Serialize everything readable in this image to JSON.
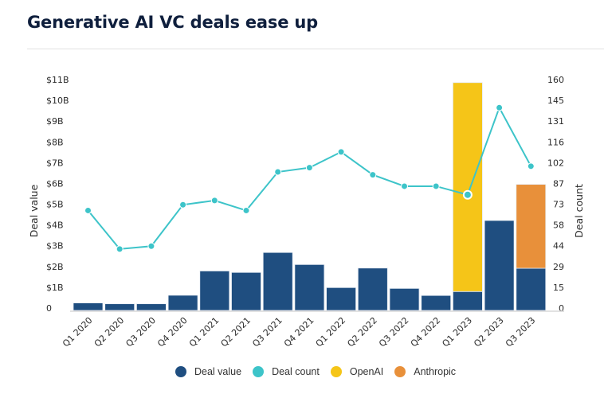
{
  "title": "Generative AI VC deals ease up",
  "chart_data": {
    "type": "bar",
    "title": "Generative AI VC deals ease up",
    "categories": [
      "Q1 2020",
      "Q2 2020",
      "Q3 2020",
      "Q4 2020",
      "Q1 2021",
      "Q2 2021",
      "Q3 2021",
      "Q4 2021",
      "Q1 2022",
      "Q2 2022",
      "Q3 2022",
      "Q4 2022",
      "Q1 2023",
      "Q2 2023",
      "Q3 2023"
    ],
    "series": [
      {
        "name": "Deal value",
        "kind": "bar",
        "axis": "left",
        "unit": "$B",
        "color": "#1f4e80",
        "values": [
          0.36,
          0.32,
          0.32,
          0.73,
          1.9,
          1.83,
          2.79,
          2.21,
          1.1,
          2.04,
          1.06,
          0.72,
          0.91,
          4.33,
          2.03
        ]
      },
      {
        "name": "OpenAI",
        "kind": "bar-stacked",
        "axis": "left",
        "unit": "$B",
        "color": "#f5c518",
        "values": [
          0,
          0,
          0,
          0,
          0,
          0,
          0,
          0,
          0,
          0,
          0,
          0,
          10.06,
          0,
          0
        ]
      },
      {
        "name": "Anthropic",
        "kind": "bar-stacked",
        "axis": "left",
        "unit": "$B",
        "color": "#e8903a",
        "values": [
          0,
          0,
          0,
          0,
          0,
          0,
          0,
          0,
          0,
          0,
          0,
          0,
          0,
          0,
          4.04
        ]
      },
      {
        "name": "Deal count",
        "kind": "line",
        "axis": "right",
        "color": "#3dc4c9",
        "values": [
          70,
          43,
          45,
          74,
          77,
          70,
          97,
          100,
          111,
          95,
          87,
          87,
          81,
          142,
          101
        ]
      }
    ],
    "xlabel": "",
    "ylabel": "Deal value",
    "y2label": "Deal count",
    "ylim": [
      0,
      11
    ],
    "y2lim": [
      0,
      160
    ],
    "yticks": [
      "0",
      "$1B",
      "$2B",
      "$3B",
      "$4B",
      "$5B",
      "$6B",
      "$7B",
      "$8B",
      "$9B",
      "$10B",
      "$11B"
    ],
    "y2ticks": [
      "0",
      "15",
      "29",
      "44",
      "58",
      "73",
      "87",
      "102",
      "116",
      "131",
      "145",
      "160"
    ],
    "highlighted_point": "Q1 2023",
    "grid": false,
    "legend": {
      "position": "bottom",
      "items": [
        {
          "label": "Deal value",
          "color": "#1f4e80"
        },
        {
          "label": "Deal count",
          "color": "#3dc4c9"
        },
        {
          "label": "OpenAI",
          "color": "#f5c518"
        },
        {
          "label": "Anthropic",
          "color": "#e8903a"
        }
      ]
    }
  }
}
